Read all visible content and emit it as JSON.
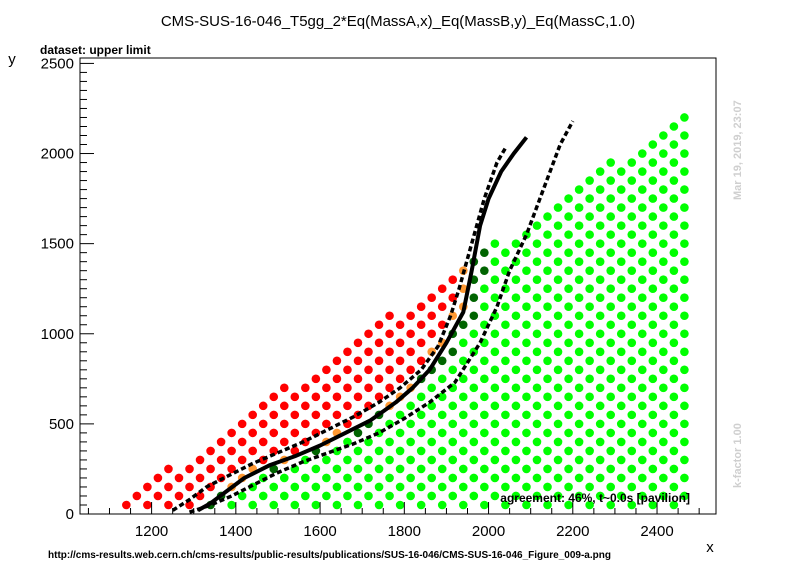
{
  "title": "CMS-SUS-16-046_T5gg_2*Eq(MassA,x)_Eq(MassB,y)_Eq(MassC,1.0)",
  "dataset_label": "dataset: upper limit",
  "agreement_label": "agreement: 46%, t~0.0s [pavilion]",
  "timestamp": "Mar 19, 2019, 23:07",
  "kfactor": "k-factor 1.00",
  "url": "http://cms-results.web.cern.ch/cms-results/public-results/publications/SUS-16-046/CMS-SUS-16-046_Figure_009-a.png",
  "colors": {
    "excluded": "#ff0000",
    "allowed": "#00ff00",
    "excluded_boundary": "#ff9933",
    "allowed_boundary": "#006400",
    "curve": "#000000"
  },
  "chart_data": {
    "type": "scatter",
    "xlabel": "x",
    "ylabel": "y",
    "xlim": [
      1030,
      2540
    ],
    "ylim": [
      0,
      2530
    ],
    "x_ticks": [
      1200,
      1400,
      1600,
      1800,
      2000,
      2200,
      2400
    ],
    "y_ticks": [
      0,
      500,
      1000,
      1500,
      2000,
      2500
    ],
    "grid": false,
    "regions": {
      "excluded_red": "points with x < observed limit",
      "allowed_green": "points with x > observed limit"
    },
    "series": [
      {
        "style": "solid",
        "x": [
          1310,
          1340,
          1380,
          1420,
          1480,
          1540,
          1600,
          1660,
          1720,
          1780,
          1820,
          1860,
          1900,
          1940,
          1960,
          1980,
          2000,
          2030,
          2060,
          2090
        ],
        "y": [
          20,
          60,
          130,
          200,
          270,
          320,
          380,
          450,
          520,
          620,
          700,
          800,
          950,
          1120,
          1350,
          1600,
          1750,
          1900,
          2000,
          2090
        ]
      },
      {
        "style": "dashed",
        "x": [
          1250,
          1290,
          1330,
          1380,
          1440,
          1500,
          1560,
          1620,
          1680,
          1740,
          1790,
          1840,
          1880,
          1910,
          1930,
          1960,
          1990,
          2020,
          2040
        ],
        "y": [
          20,
          80,
          150,
          210,
          280,
          340,
          400,
          470,
          540,
          620,
          700,
          800,
          930,
          1100,
          1250,
          1500,
          1750,
          1950,
          2030
        ]
      },
      {
        "style": "dashed",
        "x": [
          1290,
          1340,
          1390,
          1440,
          1500,
          1560,
          1620,
          1680,
          1740,
          1800,
          1860,
          1920,
          1980,
          2020,
          2050,
          2090,
          2130,
          2170,
          2200
        ],
        "y": [
          10,
          50,
          100,
          160,
          230,
          290,
          340,
          390,
          450,
          530,
          620,
          730,
          950,
          1150,
          1350,
          1550,
          1800,
          2050,
          2180
        ]
      }
    ]
  }
}
